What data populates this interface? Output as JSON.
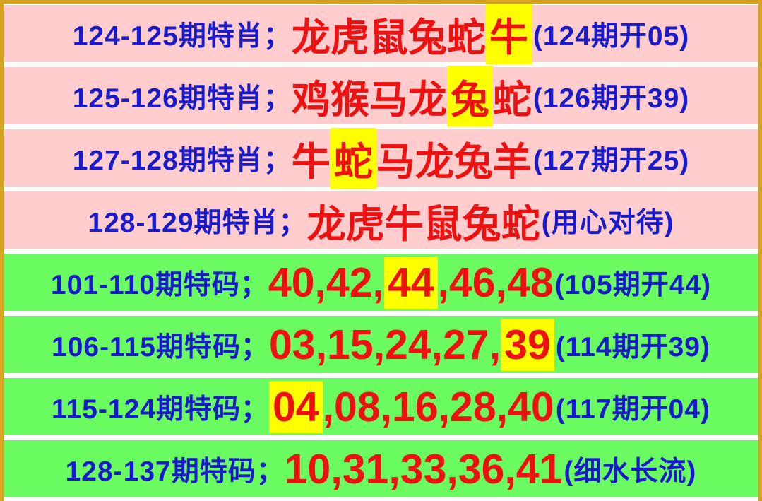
{
  "colors": {
    "pink_row_bg": "#FFCDCD",
    "green_row_bg": "#69FB5F",
    "label_blue": "#1A1ACD",
    "pick_red": "#EE1111",
    "highlight_yellow": "#FFFF00",
    "frame_gold": "#D8A221"
  },
  "rows": [
    {
      "label": "124-125期特肖；",
      "pre": "龙虎鼠兔蛇",
      "hl": "牛",
      "post": "",
      "note": "(124期开05)"
    },
    {
      "label": "125-126期特肖；",
      "pre": "鸡猴马龙",
      "hl": "兔",
      "post": "蛇",
      "note": "(126期开39)"
    },
    {
      "label": "127-128期特肖；",
      "pre": "牛",
      "hl": "蛇",
      "post": "马龙兔羊",
      "note": "(127期开25)"
    },
    {
      "label": "128-129期特肖；",
      "pre": "龙虎牛鼠兔蛇",
      "hl": "",
      "post": "",
      "note": "(用心对待)"
    },
    {
      "label": "101-110期特码；",
      "pre": "40,42,",
      "hl": "44",
      "post": ",46,48",
      "note": "(105期开44)"
    },
    {
      "label": "106-115期特码；",
      "pre": "03,15,24,27,",
      "hl": "39",
      "post": "",
      "note": "(114期开39)"
    },
    {
      "label": "115-124期特码；",
      "pre": "",
      "hl": "04",
      "post": ",08,16,28,40",
      "note": "(117期开04)"
    },
    {
      "label": "128-137期特码；",
      "pre": "10,31,33,36,41",
      "hl": "",
      "post": "",
      "note": "(细水长流)"
    }
  ]
}
